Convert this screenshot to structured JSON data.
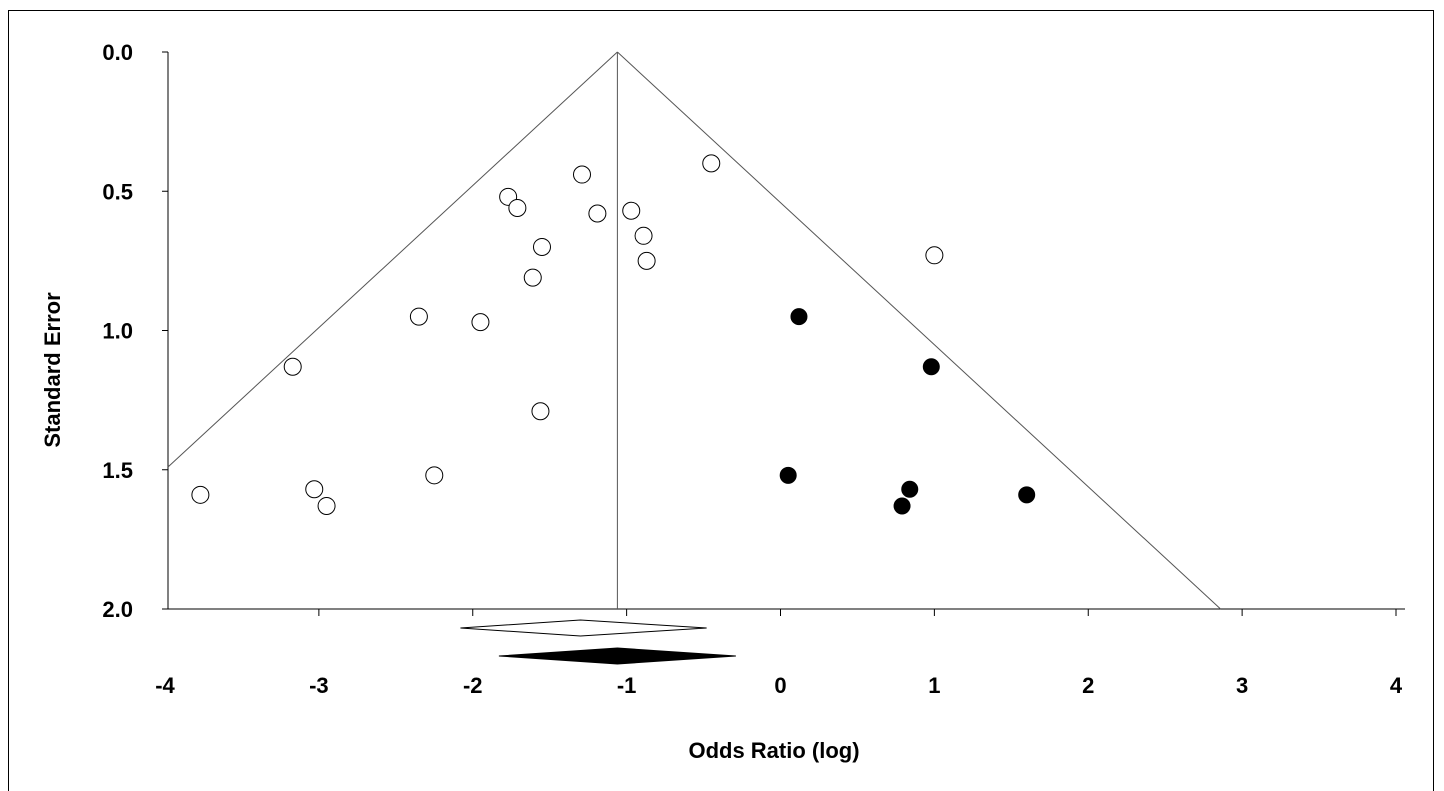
{
  "chart_data": {
    "type": "scatter",
    "title": "",
    "xlabel": "Odds Ratio (log)",
    "ylabel": "Standard Error",
    "xlim": [
      -4,
      4
    ],
    "ylim": [
      0,
      2
    ],
    "y_inverted": true,
    "x_ticks": [
      "-4",
      "-3",
      "-2",
      "-1",
      "0",
      "1",
      "2",
      "3",
      "4"
    ],
    "y_ticks": [
      "0.0",
      "0.5",
      "1.0",
      "1.5",
      "2.0"
    ],
    "grid": false,
    "pooled_estimate": -1.06,
    "series": [
      {
        "marker": "open-circle",
        "points": [
          {
            "x": -3.77,
            "y": 1.59
          },
          {
            "x": -3.17,
            "y": 1.13
          },
          {
            "x": -3.03,
            "y": 1.57
          },
          {
            "x": -2.95,
            "y": 1.63
          },
          {
            "x": -2.35,
            "y": 0.95
          },
          {
            "x": -2.25,
            "y": 1.52
          },
          {
            "x": -1.95,
            "y": 0.97
          },
          {
            "x": -1.77,
            "y": 0.52
          },
          {
            "x": -1.71,
            "y": 0.56
          },
          {
            "x": -1.61,
            "y": 0.81
          },
          {
            "x": -1.56,
            "y": 1.29
          },
          {
            "x": -1.55,
            "y": 0.7
          },
          {
            "x": -1.29,
            "y": 0.44
          },
          {
            "x": -1.19,
            "y": 0.58
          },
          {
            "x": -0.97,
            "y": 0.57
          },
          {
            "x": -0.89,
            "y": 0.66
          },
          {
            "x": -0.87,
            "y": 0.75
          },
          {
            "x": -0.45,
            "y": 0.4
          },
          {
            "x": 1.0,
            "y": 0.73
          }
        ]
      },
      {
        "marker": "filled-circle",
        "points": [
          {
            "x": 0.12,
            "y": 0.95
          },
          {
            "x": 0.98,
            "y": 1.13
          },
          {
            "x": 0.05,
            "y": 1.52
          },
          {
            "x": 0.84,
            "y": 1.57
          },
          {
            "x": 0.79,
            "y": 1.63
          },
          {
            "x": 1.6,
            "y": 1.59
          }
        ]
      }
    ],
    "diamonds": [
      {
        "style": "open",
        "center": -1.3,
        "lower": -2.08,
        "upper": -0.48
      },
      {
        "style": "filled",
        "center": -1.06,
        "lower": -1.83,
        "upper": -0.29
      }
    ]
  }
}
